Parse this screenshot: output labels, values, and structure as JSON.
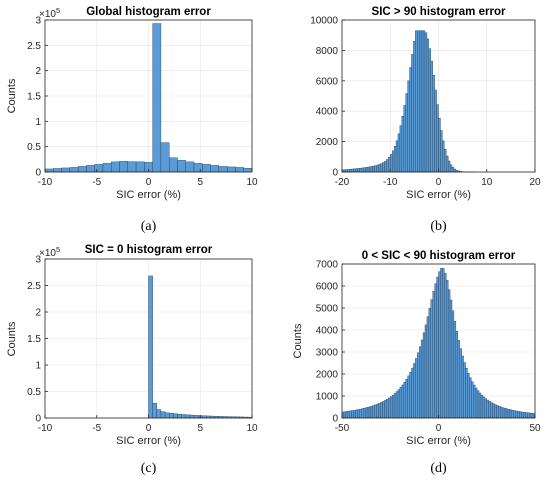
{
  "chart_data": [
    {
      "type": "bar",
      "panel": "a",
      "title": "Global histogram error",
      "caption": "(a)",
      "xlabel": "SIC error (%)",
      "ylabel": "Counts",
      "exponent_label": "×10^5",
      "xlim": [
        -10,
        10
      ],
      "ylim": [
        0,
        300000
      ],
      "xticks": [
        -10,
        -5,
        0,
        5,
        10
      ],
      "xtick_labels": [
        "-10",
        "-5",
        "0",
        "5",
        "10"
      ],
      "yticks": [
        0,
        50000,
        100000,
        150000,
        200000,
        250000,
        300000
      ],
      "ytick_labels": [
        "0",
        "0.5",
        "1",
        "1.5",
        "2",
        "2.5",
        "3"
      ],
      "grid": true,
      "bin_width": 0.8,
      "bin_start": -10,
      "values": [
        6000,
        7000,
        8000,
        9000,
        11000,
        13000,
        15000,
        17000,
        20000,
        21000,
        20500,
        20000,
        19000,
        293000,
        58000,
        28000,
        23000,
        20000,
        17000,
        15000,
        13000,
        11000,
        10000,
        9000,
        7500
      ]
    },
    {
      "type": "bar",
      "panel": "b",
      "title": "SIC > 90 histogram error",
      "caption": "(b)",
      "xlabel": "SIC error (%)",
      "ylabel": "",
      "xlim": [
        -20,
        20
      ],
      "ylim": [
        0,
        10000
      ],
      "xticks": [
        -20,
        -10,
        0,
        10,
        20
      ],
      "xtick_labels": [
        "-20",
        "-10",
        "0",
        "10",
        "20"
      ],
      "yticks": [
        0,
        2000,
        4000,
        6000,
        8000,
        10000
      ],
      "ytick_labels": [
        "0",
        "2000",
        "4000",
        "6000",
        "8000",
        "10000"
      ],
      "grid": true,
      "bin_width": 0.4,
      "bin_start": -20,
      "shape": {
        "peak": -3,
        "height": 9300,
        "sigma_left": 2.8,
        "sigma_right": 2.3,
        "tail_amp": 1900,
        "tail_decay": 6.5,
        "max_x": 10
      }
    },
    {
      "type": "bar",
      "panel": "c",
      "title": "SIC = 0 histogram error",
      "caption": "(c)",
      "xlabel": "SIC error (%)",
      "ylabel": "Counts",
      "exponent_label": "×10^5",
      "xlim": [
        -10,
        10
      ],
      "ylim": [
        0,
        300000
      ],
      "xticks": [
        -10,
        -5,
        0,
        5,
        10
      ],
      "xtick_labels": [
        "-10",
        "-5",
        "0",
        "5",
        "10"
      ],
      "yticks": [
        0,
        50000,
        100000,
        150000,
        200000,
        250000,
        300000
      ],
      "ytick_labels": [
        "0",
        "0.5",
        "1",
        "1.5",
        "2",
        "2.5",
        "3"
      ],
      "grid": true,
      "bin_width": 0.4,
      "bin_start": 0,
      "values": [
        268000,
        28000,
        16000,
        12000,
        10000,
        9000,
        8000,
        7000,
        6500,
        6000,
        5500,
        5000,
        4600,
        4200,
        3900,
        3600,
        3300,
        3000,
        2800,
        2600,
        2400,
        2200,
        2000,
        1800,
        1600
      ]
    },
    {
      "type": "bar",
      "panel": "d",
      "title": "0 < SIC < 90 histogram error",
      "caption": "(d)",
      "xlabel": "SIC error (%)",
      "ylabel": "Counts",
      "xlim": [
        -50,
        50
      ],
      "ylim": [
        0,
        7000
      ],
      "xticks": [
        -50,
        0,
        50
      ],
      "xtick_labels": [
        "-50",
        "0",
        "50"
      ],
      "yticks": [
        0,
        1000,
        2000,
        3000,
        4000,
        5000,
        6000,
        7000
      ],
      "ytick_labels": [
        "0",
        "1000",
        "2000",
        "3000",
        "4000",
        "5000",
        "6000",
        "7000"
      ],
      "grid": true,
      "bin_width": 1,
      "bin_start": -50,
      "shape": {
        "peak": 2,
        "height": 6850,
        "gamma_left": 12,
        "gamma_right": 9.5
      }
    }
  ]
}
